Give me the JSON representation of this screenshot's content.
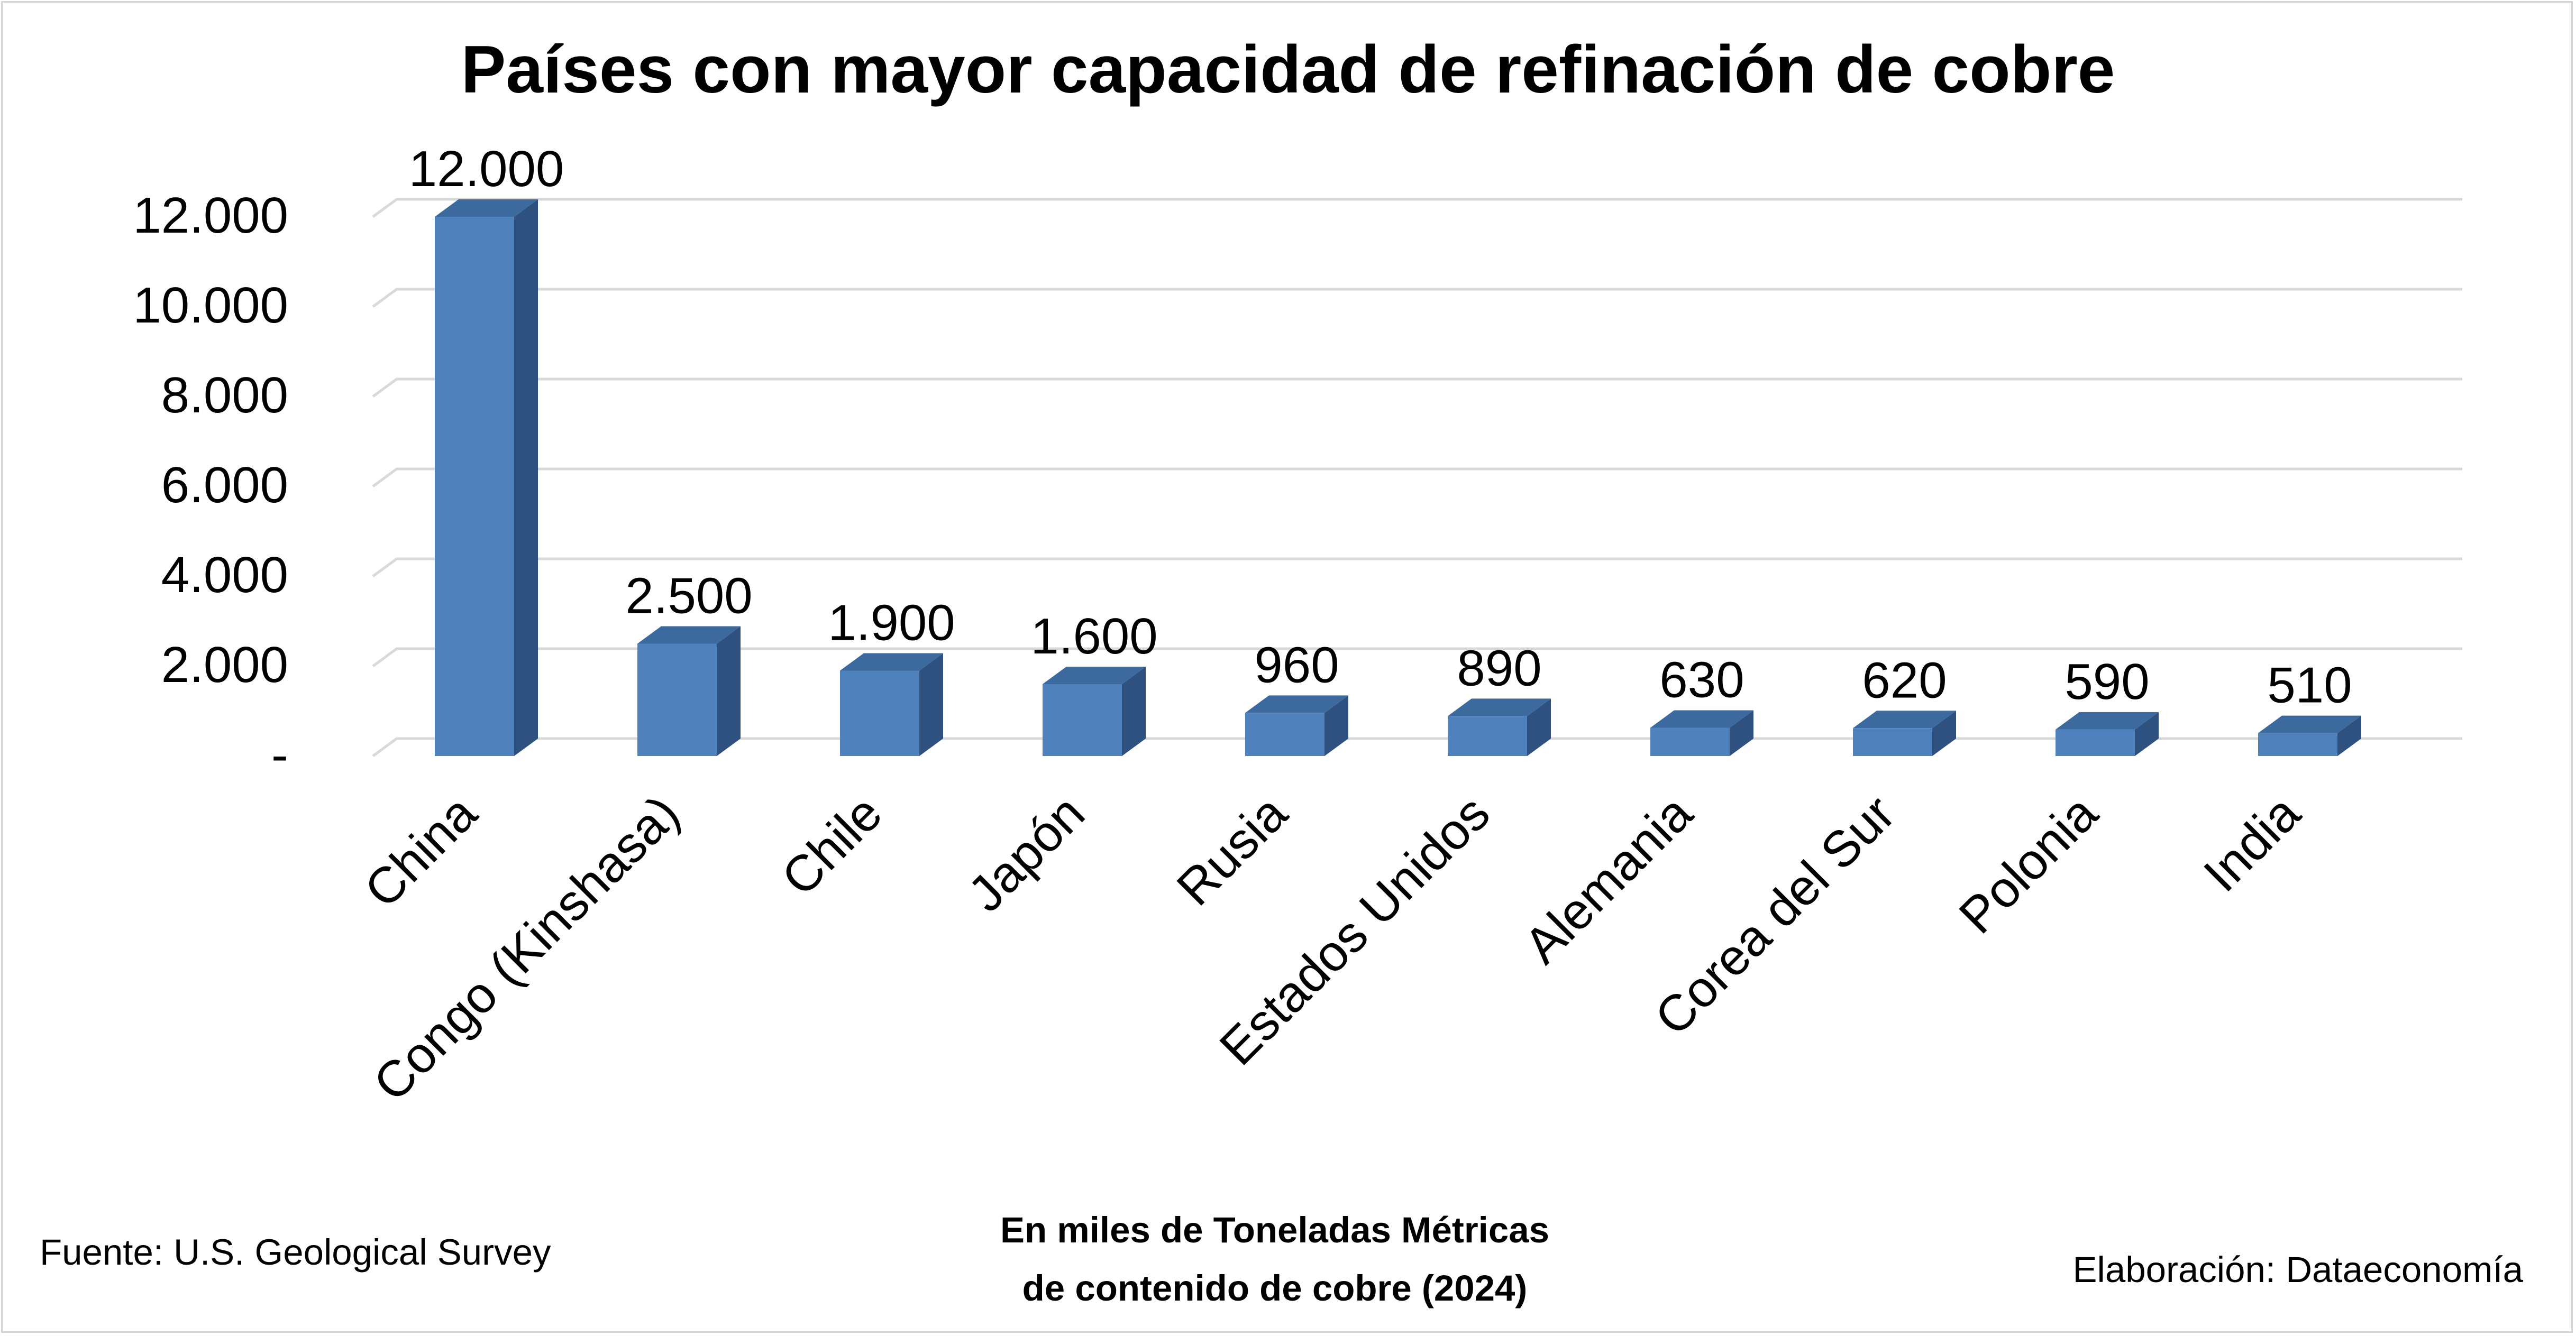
{
  "chart_data": {
    "type": "bar",
    "title": "Países con mayor capacidad de refinación de cobre",
    "categories": [
      "China",
      "Congo (Kinshasa)",
      "Chile",
      "Japón",
      "Rusia",
      "Estados Unidos",
      "Alemania",
      "Corea del Sur",
      "Polonia",
      "India"
    ],
    "values": [
      12000,
      2500,
      1900,
      1600,
      960,
      890,
      630,
      620,
      590,
      510
    ],
    "data_labels": [
      "12.000",
      "2.500",
      "1.900",
      "1.600",
      "960",
      "890",
      "630",
      "620",
      "590",
      "510"
    ],
    "ylim": [
      0,
      12000
    ],
    "yticks": [
      {
        "value": 0,
        "label": "-"
      },
      {
        "value": 2000,
        "label": "2.000"
      },
      {
        "value": 4000,
        "label": "4.000"
      },
      {
        "value": 6000,
        "label": "6.000"
      },
      {
        "value": 8000,
        "label": "8.000"
      },
      {
        "value": 10000,
        "label": "10.000"
      },
      {
        "value": 12000,
        "label": "12.000"
      }
    ],
    "grid": true,
    "style": "3d-column",
    "colors": {
      "bar_front": "#4f81bd",
      "bar_side": "#2f5180",
      "bar_top": "#3d6a9e",
      "grid": "#d9d9d9"
    }
  },
  "footer": {
    "source": "Fuente: U.S. Geological Survey",
    "unit_line1": "En miles de Toneladas Métricas",
    "unit_line2": "de contenido de cobre (2024)",
    "credit": "Elaboración: Dataeconomía"
  }
}
